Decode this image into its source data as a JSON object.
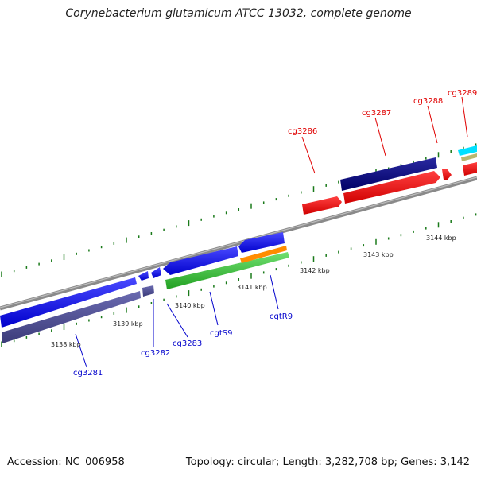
{
  "title": "Corynebacterium glutamicum ATCC 13032, complete genome",
  "footer": {
    "accession": "Accession: NC_006958",
    "summary": "Topology: circular; Length: 3,282,708 bp; Genes: 3,142"
  },
  "scale": {
    "unit": "kbp",
    "ticks": [
      "3138 kbp",
      "3139 kbp",
      "3140 kbp",
      "3141 kbp",
      "3142 kbp",
      "3143 kbp",
      "3144 kbp"
    ]
  },
  "colors": {
    "backbone": "#888888",
    "tick": "#1a7a1a",
    "forward_label": "#e00000",
    "reverse_label": "#0000cc"
  },
  "forward_genes": [
    "cg3286",
    "cg3287",
    "cg3288",
    "cg3289"
  ],
  "reverse_genes": [
    "cg3281",
    "cg3282",
    "cg3283",
    "cgtS9",
    "cgtR9"
  ]
}
